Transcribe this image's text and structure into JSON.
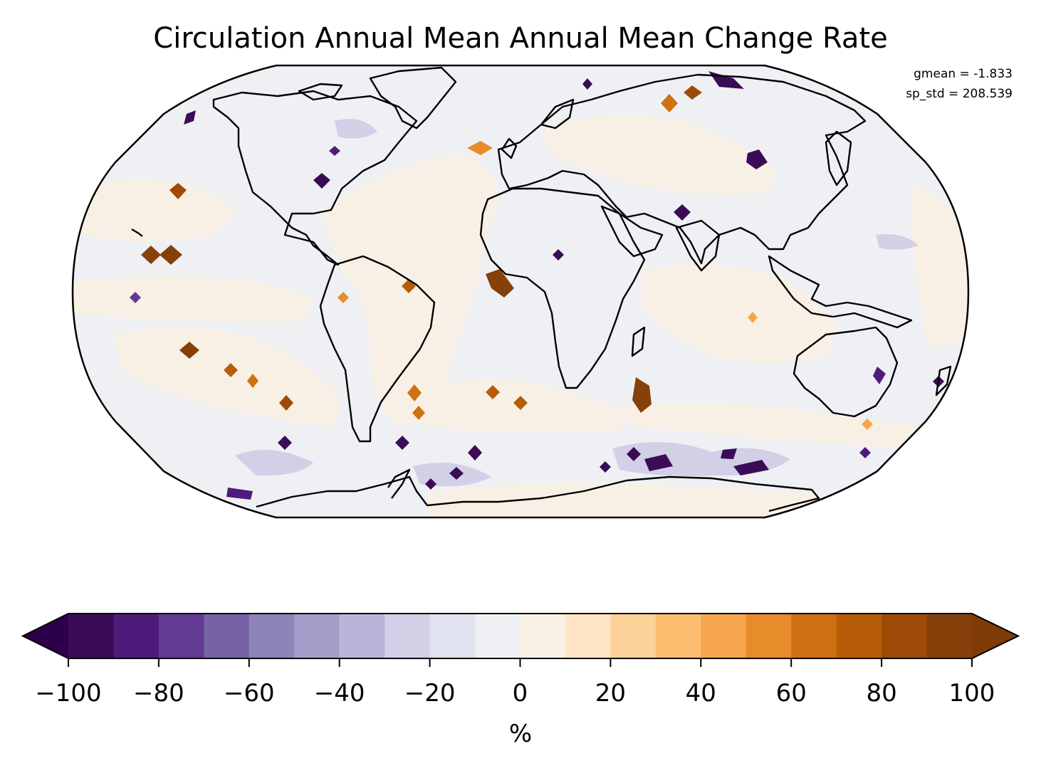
{
  "title": "Circulation Annual Mean Annual Mean Change Rate",
  "stats": {
    "gmean": "gmean = -1.833",
    "sp_std": "sp_std = 208.539"
  },
  "colorbar": {
    "label": "%",
    "ticks": [
      "−100",
      "−80",
      "−60",
      "−40",
      "−20",
      "0",
      "20",
      "40",
      "60",
      "80",
      "100"
    ],
    "tick_values": [
      -100,
      -80,
      -60,
      -40,
      -20,
      0,
      20,
      40,
      60,
      80,
      100
    ],
    "min": -100,
    "max": 100,
    "step": 10,
    "extend": "both",
    "under_color": "#2d004b",
    "over_color": "#7f3b08",
    "colors": [
      "#3b0b55",
      "#4f1b7a",
      "#633a93",
      "#7661a4",
      "#8e84b8",
      "#a49dca",
      "#bbb4d9",
      "#d1d0e6",
      "#e1e2ef",
      "#eff0f4",
      "#f9f0e5",
      "#fde5c6",
      "#fdd298",
      "#fcbd6f",
      "#f5a64c",
      "#e68c2a",
      "#cf7012",
      "#b75d0a",
      "#9f4b08",
      "#864009"
    ]
  },
  "map": {
    "projection": "Robinson",
    "background_color": "#eff0f4",
    "coastline_color": "#000000",
    "positive_band_color": "#f9f0e5",
    "max_color": "#7f3b08",
    "min_color": "#2d004b"
  }
}
